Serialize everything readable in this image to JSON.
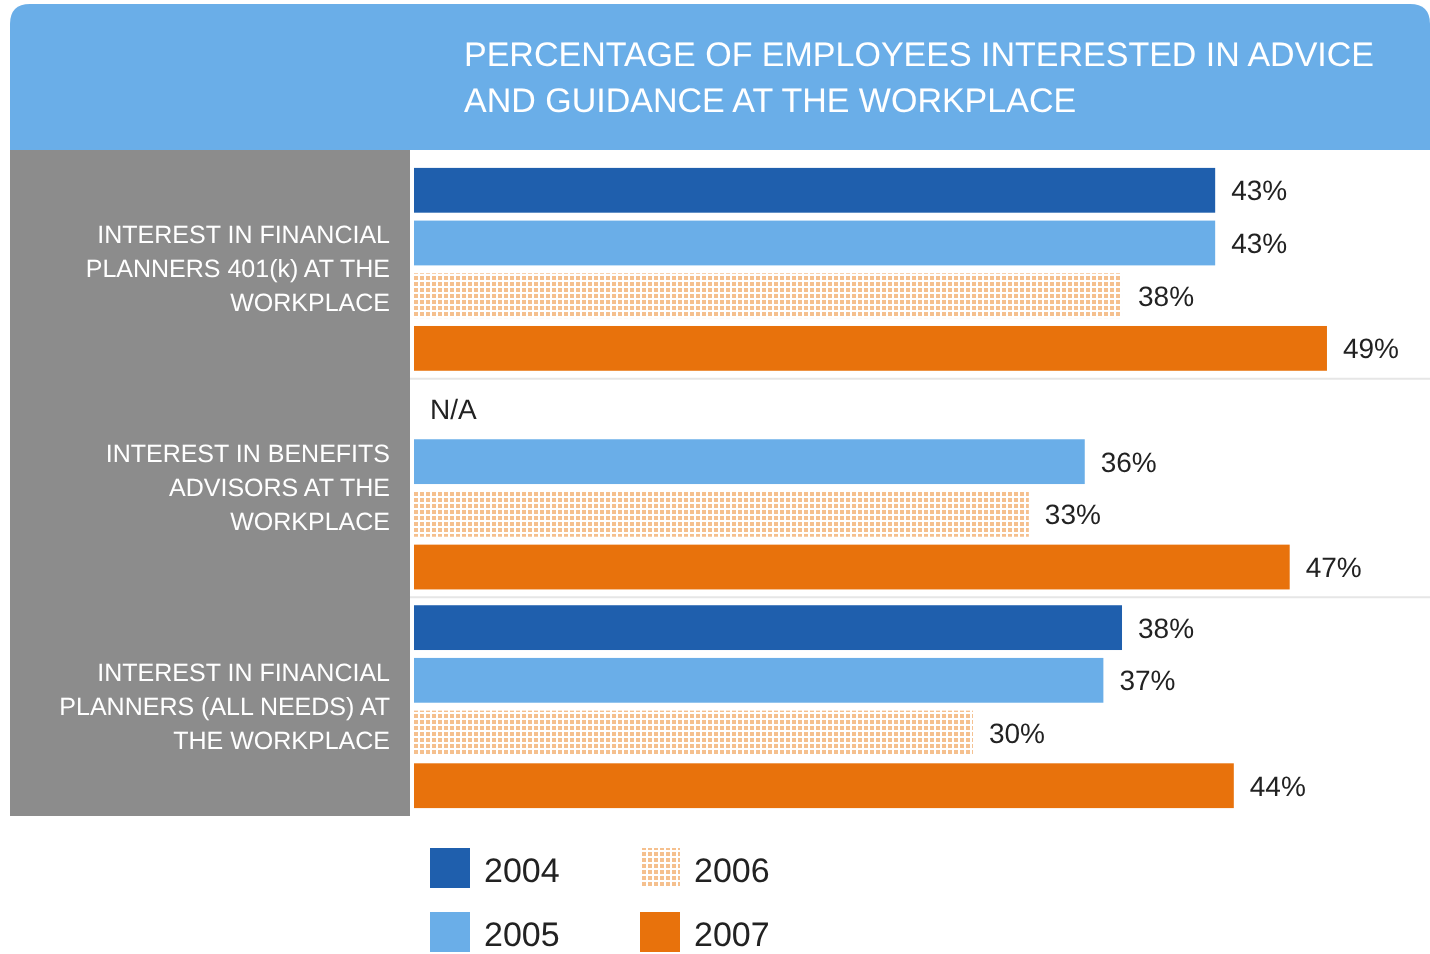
{
  "chart_data": {
    "type": "bar",
    "orientation": "horizontal",
    "title": "PERCENTAGE OF EMPLOYEES INTERESTED IN ADVICE AND GUIDANCE AT THE WORKPLACE",
    "categories": [
      "INTEREST IN FINANCIAL PLANNERS 401(k)  AT THE WORKPLACE",
      "INTEREST IN BENEFITS ADVISORS AT THE WORKPLACE",
      "INTEREST IN FINANCIAL PLANNERS (ALL NEEDS) AT THE WORKPLACE"
    ],
    "series": [
      {
        "name": "2004",
        "color": "#1f5fad",
        "values": [
          43,
          null,
          38
        ],
        "value_labels": [
          "43%",
          "N/A",
          "38%"
        ]
      },
      {
        "name": "2005",
        "color": "#6aaee8",
        "values": [
          43,
          36,
          37
        ],
        "value_labels": [
          "43%",
          "36%",
          "37%"
        ]
      },
      {
        "name": "2006",
        "color": "#f5c08e",
        "values": [
          38,
          33,
          30
        ],
        "value_labels": [
          "38%",
          "33%",
          "30%"
        ]
      },
      {
        "name": "2007",
        "color": "#e8720c",
        "values": [
          49,
          47,
          44
        ],
        "value_labels": [
          "49%",
          "47%",
          "44%"
        ]
      }
    ],
    "legend": "bottom",
    "grid": false
  }
}
